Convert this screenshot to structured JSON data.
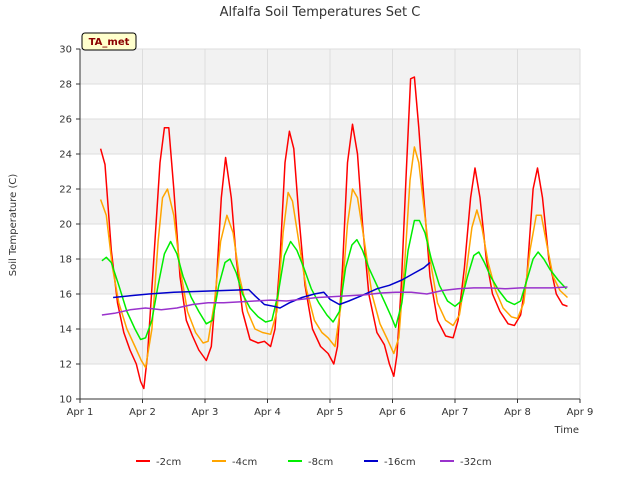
{
  "chart_data": {
    "type": "line",
    "title": "Alfalfa Soil Temperatures Set C",
    "xlabel": "Time",
    "ylabel": "Soil Temperature (C)",
    "tag": "TA_met",
    "xlim": [
      1,
      9
    ],
    "ylim": [
      10,
      30
    ],
    "x_ticks": [
      {
        "value": 1,
        "label": "Apr 1"
      },
      {
        "value": 2,
        "label": "Apr 2"
      },
      {
        "value": 3,
        "label": "Apr 3"
      },
      {
        "value": 4,
        "label": "Apr 4"
      },
      {
        "value": 5,
        "label": "Apr 5"
      },
      {
        "value": 6,
        "label": "Apr 6"
      },
      {
        "value": 7,
        "label": "Apr 7"
      },
      {
        "value": 8,
        "label": "Apr 8"
      },
      {
        "value": 9,
        "label": "Apr 9"
      }
    ],
    "y_ticks": [
      10,
      12,
      14,
      16,
      18,
      20,
      22,
      24,
      26,
      28,
      30
    ],
    "grid": true,
    "legend_position": "bottom",
    "series": [
      {
        "name": "-2cm",
        "color": "#ff0000",
        "points": [
          [
            1.33,
            24.3
          ],
          [
            1.4,
            23.4
          ],
          [
            1.5,
            18.5
          ],
          [
            1.6,
            15.5
          ],
          [
            1.7,
            13.8
          ],
          [
            1.8,
            12.8
          ],
          [
            1.9,
            12.0
          ],
          [
            1.97,
            11.0
          ],
          [
            2.02,
            10.6
          ],
          [
            2.08,
            12.5
          ],
          [
            2.18,
            18.0
          ],
          [
            2.28,
            23.5
          ],
          [
            2.35,
            25.5
          ],
          [
            2.42,
            25.5
          ],
          [
            2.5,
            22.0
          ],
          [
            2.6,
            17.0
          ],
          [
            2.7,
            14.5
          ],
          [
            2.8,
            13.6
          ],
          [
            2.9,
            12.8
          ],
          [
            3.02,
            12.2
          ],
          [
            3.1,
            13.0
          ],
          [
            3.18,
            16.5
          ],
          [
            3.26,
            21.5
          ],
          [
            3.33,
            23.8
          ],
          [
            3.42,
            21.5
          ],
          [
            3.5,
            18.0
          ],
          [
            3.6,
            15.0
          ],
          [
            3.72,
            13.4
          ],
          [
            3.85,
            13.2
          ],
          [
            3.95,
            13.3
          ],
          [
            4.05,
            13.0
          ],
          [
            4.12,
            14.0
          ],
          [
            4.2,
            18.0
          ],
          [
            4.28,
            23.5
          ],
          [
            4.35,
            25.3
          ],
          [
            4.42,
            24.3
          ],
          [
            4.5,
            20.5
          ],
          [
            4.6,
            16.5
          ],
          [
            4.72,
            14.0
          ],
          [
            4.85,
            13.0
          ],
          [
            4.97,
            12.6
          ],
          [
            5.06,
            12.0
          ],
          [
            5.12,
            13.0
          ],
          [
            5.2,
            17.5
          ],
          [
            5.28,
            23.5
          ],
          [
            5.36,
            25.7
          ],
          [
            5.44,
            24.0
          ],
          [
            5.52,
            20.0
          ],
          [
            5.62,
            16.0
          ],
          [
            5.75,
            13.8
          ],
          [
            5.87,
            13.1
          ],
          [
            5.95,
            12.0
          ],
          [
            6.02,
            11.3
          ],
          [
            6.07,
            12.5
          ],
          [
            6.14,
            16.5
          ],
          [
            6.22,
            23.0
          ],
          [
            6.29,
            28.3
          ],
          [
            6.35,
            28.4
          ],
          [
            6.42,
            25.5
          ],
          [
            6.5,
            21.5
          ],
          [
            6.6,
            17.0
          ],
          [
            6.72,
            14.5
          ],
          [
            6.85,
            13.6
          ],
          [
            6.97,
            13.5
          ],
          [
            7.05,
            14.5
          ],
          [
            7.15,
            17.5
          ],
          [
            7.25,
            21.5
          ],
          [
            7.32,
            23.2
          ],
          [
            7.4,
            21.5
          ],
          [
            7.5,
            18.0
          ],
          [
            7.6,
            16.0
          ],
          [
            7.72,
            15.0
          ],
          [
            7.85,
            14.3
          ],
          [
            7.95,
            14.2
          ],
          [
            8.05,
            14.8
          ],
          [
            8.15,
            17.0
          ],
          [
            8.25,
            22.0
          ],
          [
            8.32,
            23.2
          ],
          [
            8.4,
            21.5
          ],
          [
            8.5,
            18.0
          ],
          [
            8.62,
            16.0
          ],
          [
            8.72,
            15.4
          ],
          [
            8.8,
            15.3
          ]
        ]
      },
      {
        "name": "-4cm",
        "color": "#ffa500",
        "points": [
          [
            1.33,
            21.4
          ],
          [
            1.42,
            20.5
          ],
          [
            1.52,
            17.5
          ],
          [
            1.62,
            15.5
          ],
          [
            1.75,
            14.0
          ],
          [
            1.88,
            13.0
          ],
          [
            1.98,
            12.2
          ],
          [
            2.05,
            11.8
          ],
          [
            2.15,
            14.0
          ],
          [
            2.25,
            19.0
          ],
          [
            2.32,
            21.5
          ],
          [
            2.4,
            22.0
          ],
          [
            2.5,
            20.5
          ],
          [
            2.6,
            17.5
          ],
          [
            2.72,
            15.0
          ],
          [
            2.85,
            13.8
          ],
          [
            2.97,
            13.2
          ],
          [
            3.05,
            13.3
          ],
          [
            3.15,
            15.5
          ],
          [
            3.25,
            19.0
          ],
          [
            3.35,
            20.5
          ],
          [
            3.45,
            19.5
          ],
          [
            3.55,
            17.0
          ],
          [
            3.68,
            15.0
          ],
          [
            3.8,
            14.0
          ],
          [
            3.92,
            13.8
          ],
          [
            4.05,
            13.7
          ],
          [
            4.15,
            15.0
          ],
          [
            4.25,
            19.5
          ],
          [
            4.33,
            21.8
          ],
          [
            4.4,
            21.3
          ],
          [
            4.5,
            19.0
          ],
          [
            4.62,
            16.3
          ],
          [
            4.75,
            14.5
          ],
          [
            4.87,
            13.8
          ],
          [
            4.97,
            13.5
          ],
          [
            5.08,
            13.0
          ],
          [
            5.18,
            15.5
          ],
          [
            5.28,
            20.0
          ],
          [
            5.36,
            22.0
          ],
          [
            5.44,
            21.5
          ],
          [
            5.55,
            19.0
          ],
          [
            5.67,
            16.0
          ],
          [
            5.8,
            14.3
          ],
          [
            5.92,
            13.4
          ],
          [
            6.02,
            12.6
          ],
          [
            6.1,
            13.5
          ],
          [
            6.2,
            18.0
          ],
          [
            6.28,
            22.5
          ],
          [
            6.35,
            24.4
          ],
          [
            6.42,
            23.5
          ],
          [
            6.5,
            21.0
          ],
          [
            6.6,
            18.0
          ],
          [
            6.72,
            15.5
          ],
          [
            6.85,
            14.5
          ],
          [
            6.97,
            14.2
          ],
          [
            7.07,
            14.8
          ],
          [
            7.17,
            17.0
          ],
          [
            7.27,
            19.8
          ],
          [
            7.35,
            20.8
          ],
          [
            7.43,
            19.8
          ],
          [
            7.53,
            17.8
          ],
          [
            7.65,
            16.2
          ],
          [
            7.77,
            15.2
          ],
          [
            7.9,
            14.7
          ],
          [
            8.0,
            14.6
          ],
          [
            8.1,
            15.5
          ],
          [
            8.2,
            18.5
          ],
          [
            8.3,
            20.5
          ],
          [
            8.38,
            20.5
          ],
          [
            8.47,
            18.8
          ],
          [
            8.57,
            17.0
          ],
          [
            8.68,
            16.2
          ],
          [
            8.8,
            15.8
          ]
        ]
      },
      {
        "name": "-8cm",
        "color": "#00ee00",
        "points": [
          [
            1.35,
            17.9
          ],
          [
            1.42,
            18.1
          ],
          [
            1.5,
            17.8
          ],
          [
            1.62,
            16.5
          ],
          [
            1.75,
            15.0
          ],
          [
            1.88,
            14.0
          ],
          [
            1.97,
            13.4
          ],
          [
            2.05,
            13.5
          ],
          [
            2.15,
            14.5
          ],
          [
            2.25,
            16.5
          ],
          [
            2.35,
            18.3
          ],
          [
            2.45,
            19.0
          ],
          [
            2.55,
            18.3
          ],
          [
            2.65,
            17.0
          ],
          [
            2.78,
            15.8
          ],
          [
            2.9,
            15.0
          ],
          [
            3.02,
            14.3
          ],
          [
            3.12,
            14.5
          ],
          [
            3.22,
            16.5
          ],
          [
            3.32,
            17.8
          ],
          [
            3.4,
            18.0
          ],
          [
            3.5,
            17.2
          ],
          [
            3.6,
            16.0
          ],
          [
            3.72,
            15.2
          ],
          [
            3.85,
            14.7
          ],
          [
            3.97,
            14.4
          ],
          [
            4.07,
            14.5
          ],
          [
            4.17,
            16.0
          ],
          [
            4.27,
            18.2
          ],
          [
            4.37,
            19.0
          ],
          [
            4.47,
            18.5
          ],
          [
            4.58,
            17.5
          ],
          [
            4.7,
            16.3
          ],
          [
            4.82,
            15.5
          ],
          [
            4.95,
            14.8
          ],
          [
            5.05,
            14.4
          ],
          [
            5.15,
            15.0
          ],
          [
            5.25,
            17.5
          ],
          [
            5.35,
            18.8
          ],
          [
            5.43,
            19.1
          ],
          [
            5.52,
            18.5
          ],
          [
            5.62,
            17.5
          ],
          [
            5.75,
            16.5
          ],
          [
            5.88,
            15.5
          ],
          [
            5.98,
            14.7
          ],
          [
            6.05,
            14.1
          ],
          [
            6.15,
            15.5
          ],
          [
            6.25,
            18.5
          ],
          [
            6.35,
            20.2
          ],
          [
            6.43,
            20.2
          ],
          [
            6.52,
            19.5
          ],
          [
            6.62,
            18.0
          ],
          [
            6.75,
            16.5
          ],
          [
            6.88,
            15.6
          ],
          [
            7.0,
            15.3
          ],
          [
            7.1,
            15.6
          ],
          [
            7.2,
            17.0
          ],
          [
            7.3,
            18.2
          ],
          [
            7.38,
            18.4
          ],
          [
            7.47,
            17.8
          ],
          [
            7.57,
            17.0
          ],
          [
            7.7,
            16.2
          ],
          [
            7.83,
            15.6
          ],
          [
            7.95,
            15.4
          ],
          [
            8.05,
            15.6
          ],
          [
            8.15,
            16.8
          ],
          [
            8.25,
            18.0
          ],
          [
            8.33,
            18.4
          ],
          [
            8.42,
            18.0
          ],
          [
            8.52,
            17.4
          ],
          [
            8.65,
            16.8
          ],
          [
            8.78,
            16.3
          ]
        ]
      },
      {
        "name": "-16cm",
        "color": "#0000cc",
        "points": [
          [
            1.53,
            15.8
          ],
          [
            1.8,
            15.9
          ],
          [
            2.1,
            16.0
          ],
          [
            2.5,
            16.1
          ],
          [
            2.9,
            16.15
          ],
          [
            3.3,
            16.2
          ],
          [
            3.7,
            16.25
          ],
          [
            3.8,
            15.9
          ],
          [
            3.95,
            15.4
          ],
          [
            4.1,
            15.3
          ],
          [
            4.2,
            15.2
          ],
          [
            4.35,
            15.5
          ],
          [
            4.55,
            15.8
          ],
          [
            4.75,
            16.0
          ],
          [
            4.9,
            16.1
          ],
          [
            5.0,
            15.7
          ],
          [
            5.15,
            15.4
          ],
          [
            5.3,
            15.6
          ],
          [
            5.5,
            15.9
          ],
          [
            5.75,
            16.3
          ],
          [
            5.95,
            16.5
          ],
          [
            6.15,
            16.8
          ],
          [
            6.35,
            17.2
          ],
          [
            6.5,
            17.5
          ],
          [
            6.6,
            17.8
          ]
        ]
      },
      {
        "name": "-32cm",
        "color": "#9932cc",
        "points": [
          [
            1.35,
            14.8
          ],
          [
            1.55,
            14.9
          ],
          [
            1.8,
            15.1
          ],
          [
            2.05,
            15.2
          ],
          [
            2.3,
            15.1
          ],
          [
            2.55,
            15.2
          ],
          [
            2.8,
            15.4
          ],
          [
            3.05,
            15.5
          ],
          [
            3.3,
            15.5
          ],
          [
            3.55,
            15.55
          ],
          [
            3.8,
            15.6
          ],
          [
            4.05,
            15.65
          ],
          [
            4.3,
            15.6
          ],
          [
            4.55,
            15.7
          ],
          [
            4.8,
            15.8
          ],
          [
            5.05,
            15.85
          ],
          [
            5.3,
            15.9
          ],
          [
            5.55,
            15.95
          ],
          [
            5.8,
            16.05
          ],
          [
            6.05,
            16.1
          ],
          [
            6.3,
            16.1
          ],
          [
            6.55,
            16.0
          ],
          [
            6.8,
            16.2
          ],
          [
            7.05,
            16.3
          ],
          [
            7.3,
            16.35
          ],
          [
            7.55,
            16.35
          ],
          [
            7.8,
            16.3
          ],
          [
            8.05,
            16.35
          ],
          [
            8.3,
            16.35
          ],
          [
            8.55,
            16.35
          ],
          [
            8.8,
            16.4
          ]
        ]
      }
    ]
  }
}
